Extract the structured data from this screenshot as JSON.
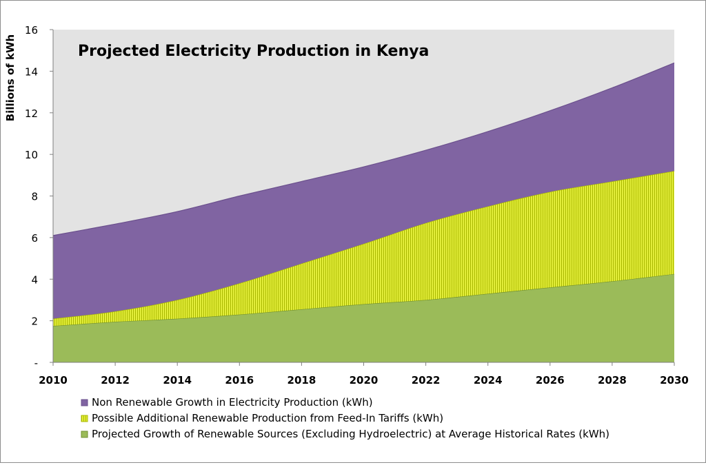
{
  "chart_data": {
    "type": "area",
    "stacked": true,
    "title": "Projected Electricity Production in Kenya",
    "ylabel": "Billions of kWh",
    "xlabel": "",
    "ylim": [
      0,
      16
    ],
    "xlim": [
      2010,
      2030
    ],
    "xticks": [
      "2010",
      "2012",
      "2014",
      "2016",
      "2018",
      "2020",
      "2022",
      "2024",
      "2026",
      "2028",
      "2030"
    ],
    "yticks": [
      "-",
      "2",
      "4",
      "6",
      "8",
      "10",
      "12",
      "14",
      "16"
    ],
    "x": [
      2010,
      2012,
      2014,
      2016,
      2018,
      2020,
      2022,
      2024,
      2026,
      2028,
      2030
    ],
    "series": [
      {
        "name": "Projected Growth of Renewable Sources (Excluding Hydroelectric) at Average Historical Rates (kWh)",
        "color": "#9bbb59",
        "values": [
          1.75,
          1.95,
          2.1,
          2.3,
          2.55,
          2.8,
          3.0,
          3.3,
          3.6,
          3.9,
          4.25
        ]
      },
      {
        "name": "Possible Additional Renewable Production from Feed-In Tariffs (kWh)",
        "color": "#d4e400",
        "values": [
          0.35,
          0.5,
          0.9,
          1.5,
          2.2,
          2.9,
          3.7,
          4.2,
          4.6,
          4.8,
          4.95
        ]
      },
      {
        "name": "Non Renewable Growth in Electricity Production (kWh)",
        "color": "#8064a2",
        "values": [
          4.0,
          4.2,
          4.25,
          4.2,
          3.95,
          3.7,
          3.5,
          3.6,
          3.9,
          4.5,
          5.2
        ]
      }
    ],
    "legend": [
      "Non Renewable Growth in Electricity Production (kWh)",
      "Possible Additional Renewable Production from Feed-In Tariffs (kWh)",
      "Projected Growth of Renewable Sources (Excluding Hydroelectric) at Average Historical Rates (kWh)"
    ],
    "plot_background": "#e3e3e3"
  }
}
